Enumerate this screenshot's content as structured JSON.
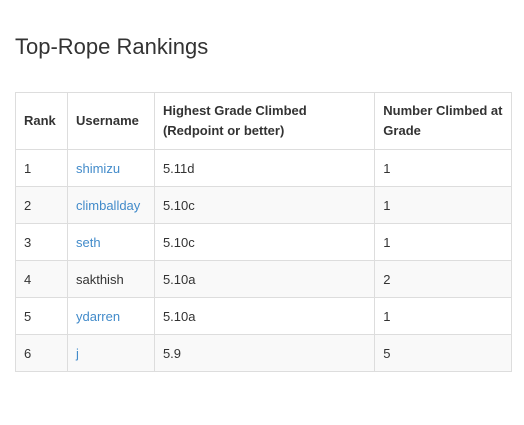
{
  "page": {
    "title": "Top-Rope Rankings"
  },
  "table": {
    "headers": {
      "rank": "Rank",
      "username": "Username",
      "grade": "Highest Grade Climbed (Redpoint or better)",
      "count": "Number Climbed at Grade"
    },
    "rows": [
      {
        "rank": "1",
        "username": "shimizu",
        "grade": "5.11d",
        "count": "1",
        "linked": true
      },
      {
        "rank": "2",
        "username": "climballday",
        "grade": "5.10c",
        "count": "1",
        "linked": true
      },
      {
        "rank": "3",
        "username": "seth",
        "grade": "5.10c",
        "count": "1",
        "linked": true
      },
      {
        "rank": "4",
        "username": "sakthish",
        "grade": "5.10a",
        "count": "2",
        "linked": false
      },
      {
        "rank": "5",
        "username": "ydarren",
        "grade": "5.10a",
        "count": "1",
        "linked": true
      },
      {
        "rank": "6",
        "username": "j",
        "grade": "5.9",
        "count": "5",
        "linked": true
      }
    ]
  },
  "colors": {
    "link": "#428bca",
    "text": "#333333",
    "border": "#dddddd",
    "stripe": "#f9f9f9"
  }
}
